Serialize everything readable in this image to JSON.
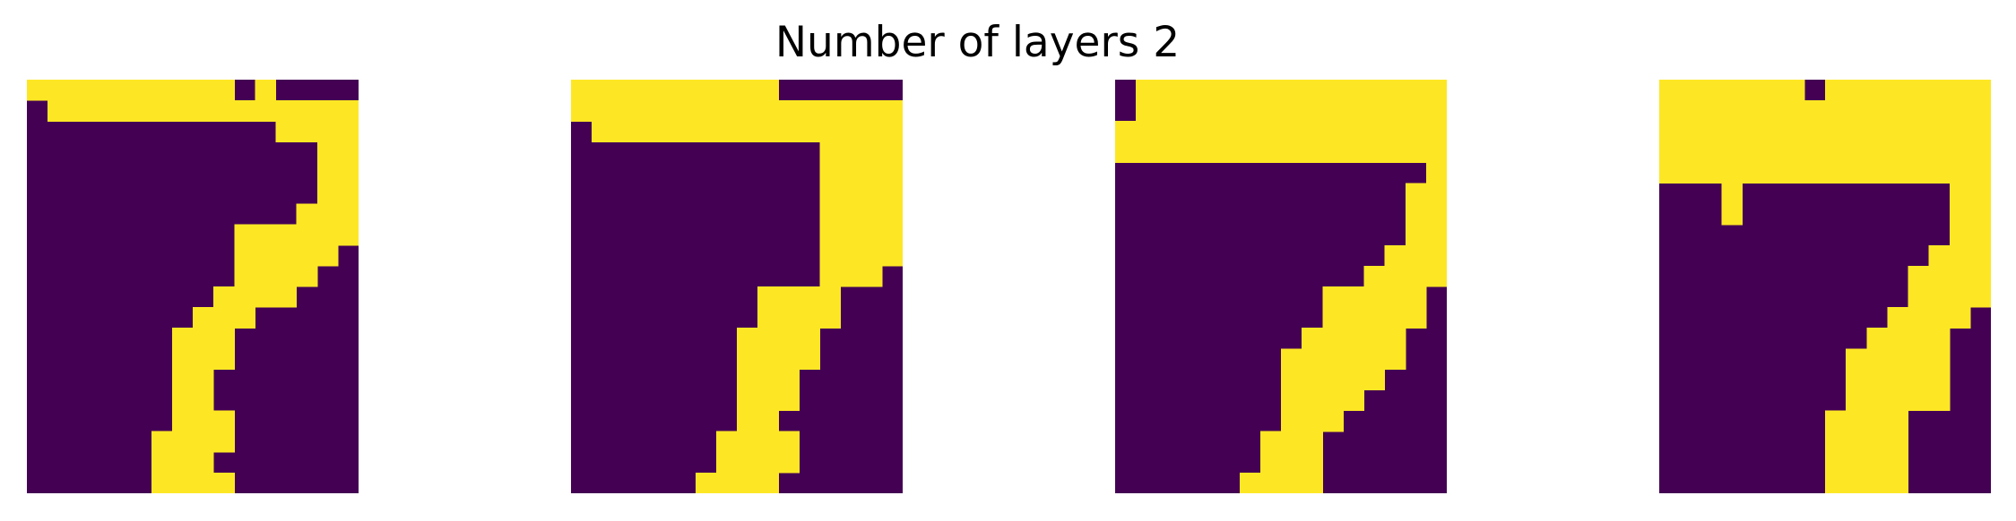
{
  "title": "Number of layers 2",
  "colors": {
    "background": "#440154",
    "foreground": "#fde725"
  },
  "chart_data": {
    "type": "heatmap",
    "title": "Number of layers 2",
    "colormap": "viridis",
    "axes": "off",
    "panels": [
      {
        "rows": [
          "1111111111010000",
          "0111111111111111",
          "0000000000001111",
          "0000000000000011",
          "0000000000000011",
          "0000000000000011",
          "0000000000000111",
          "0000000000111111",
          "0000000000111110",
          "0000000000111100",
          "0000000001111000",
          "0000000011100000",
          "0000000111000000",
          "0000000111000000",
          "0000000110000000",
          "0000000110000000",
          "0000000111000000",
          "0000001111000000",
          "0000001110000000",
          "0000001111000000"
        ]
      },
      {
        "rows": [
          "1111111111000000",
          "1111111111111111",
          "0111111111111111",
          "0000000000001111",
          "0000000000001111",
          "0000000000001111",
          "0000000000001111",
          "0000000000001111",
          "0000000000001111",
          "0000000000001110",
          "0000000001111000",
          "0000000001111000",
          "0000000011110000",
          "0000000011110000",
          "0000000011100000",
          "0000000011100000",
          "0000000011000000",
          "0000000111100000",
          "0000000111100000",
          "0000001111000000"
        ]
      },
      {
        "rows": [
          "0111111111111111",
          "0111111111111111",
          "1111111111111111",
          "1111111111111111",
          "0000000000000001",
          "0000000000000011",
          "0000000000000011",
          "0000000000000011",
          "0000000000000111",
          "0000000000001111",
          "0000000000111110",
          "0000000000111110",
          "0000000001111100",
          "0000000011111100",
          "0000000011111000",
          "0000000011110000",
          "0000000011100000",
          "0000000111000000",
          "0000000111000000",
          "0000001111000000"
        ]
      },
      {
        "rows": [
          "1111111011111111",
          "1111111111111111",
          "1111111111111111",
          "1111111111111111",
          "1111111111111111",
          "0001000000000011",
          "0001000000000011",
          "0000000000000011",
          "0000000000000111",
          "0000000000001111",
          "0000000000001111",
          "0000000000011110",
          "0000000000111100",
          "0000000001111100",
          "0000000001111100",
          "0000000001111100",
          "0000000011110000",
          "0000000011110000",
          "0000000011110000",
          "0000000011110000"
        ]
      }
    ]
  }
}
